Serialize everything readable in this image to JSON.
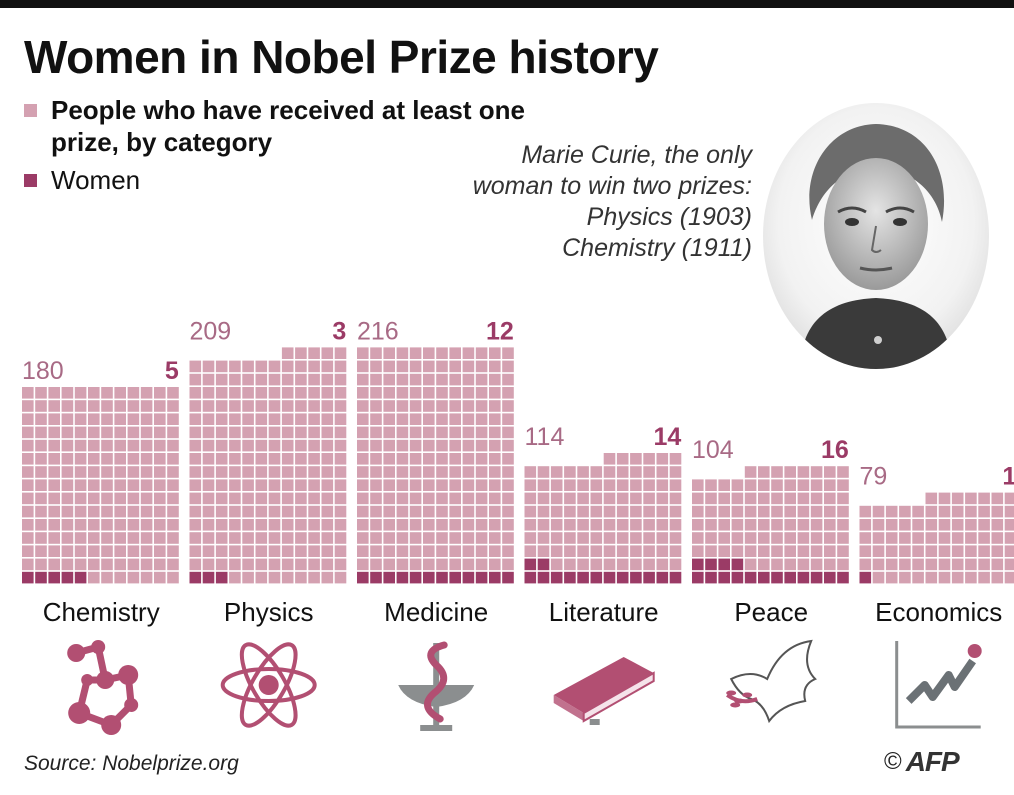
{
  "title": "Women in Nobel Prize history",
  "legend": {
    "total_label": "People who have received at least one prize, by category",
    "women_label": "Women"
  },
  "curie_note": {
    "lines": [
      "Marie Curie, the only",
      "woman to win two prizes:",
      "Physics (1903)",
      "Chemistry (1911)"
    ]
  },
  "colors": {
    "total": "#d4a1b1",
    "women": "#9b3b66",
    "grid_line": "#ffffff",
    "icon": "#b24f72",
    "icon_gray": "#8b8e8f"
  },
  "chart_data": {
    "type": "waffle",
    "unit": "1 square = 1 person",
    "categories": [
      "Chemistry",
      "Physics",
      "Medicine",
      "Literature",
      "Peace",
      "Economics"
    ],
    "series": [
      {
        "name": "People who have received at least one prize, by category",
        "values": [
          180,
          209,
          216,
          114,
          104,
          79
        ]
      },
      {
        "name": "Women",
        "values": [
          5,
          3,
          12,
          14,
          16,
          1
        ]
      }
    ],
    "icons": [
      "molecule-icon",
      "atom-icon",
      "caduceus-icon",
      "book-icon",
      "dove-icon",
      "rising-chart-icon"
    ]
  },
  "source": "Source: Nobelprize.org",
  "copyright": {
    "symbol": "©",
    "agency": "AFP"
  }
}
